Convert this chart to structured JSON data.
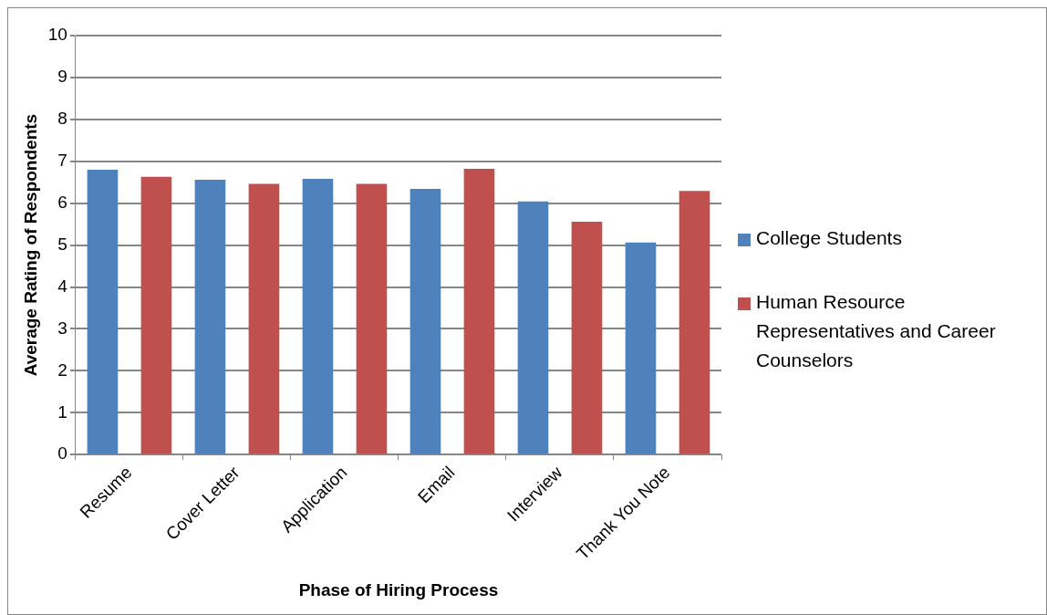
{
  "chart_data": {
    "type": "bar",
    "xlabel": "Phase of Hiring Process",
    "ylabel": "Average Rating of Respondents",
    "categories": [
      "Resume",
      "Cover Letter",
      "Application",
      "Email",
      "Interview",
      "Thank You Note"
    ],
    "series": [
      {
        "name": "College Students",
        "color": "#4f81bd",
        "values": [
          6.8,
          6.56,
          6.58,
          6.34,
          6.04,
          5.06
        ]
      },
      {
        "name": "Human Resource Representatives and Career Counselors",
        "color": "#c0504d",
        "values": [
          6.63,
          6.46,
          6.46,
          6.82,
          5.56,
          6.29
        ]
      }
    ],
    "ylim": [
      0,
      10
    ],
    "yticks": [
      0,
      1,
      2,
      3,
      4,
      5,
      6,
      7,
      8,
      9,
      10
    ],
    "grid": "y",
    "legend": "right"
  }
}
